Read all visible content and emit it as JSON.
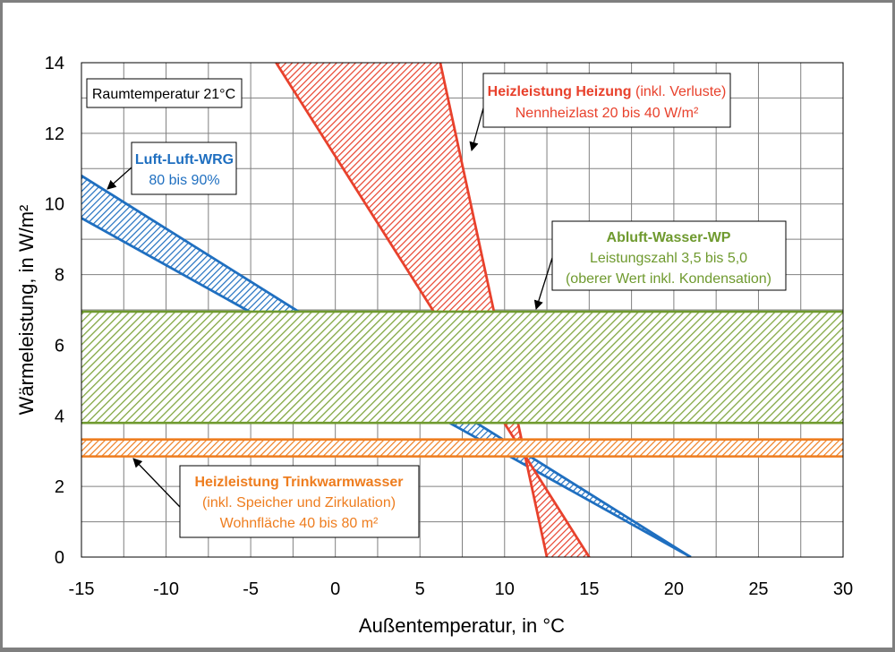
{
  "chart_data": {
    "type": "area",
    "xlabel": "Außentemperatur, in °C",
    "ylabel": "Wärmeleistung, in W/m²",
    "xlim": [
      -15,
      30
    ],
    "ylim": [
      0,
      14
    ],
    "xticks": [
      -15,
      -10,
      -5,
      0,
      5,
      10,
      15,
      20,
      25,
      30
    ],
    "yticks": [
      0,
      2,
      4,
      6,
      8,
      10,
      12,
      14
    ],
    "grid": true,
    "colors": {
      "wrg": "#1f6fc0",
      "heizung": "#e8412c",
      "abluft": "#6f9a2f",
      "trinkwarmwasser": "#ee7d1f",
      "grid": "#808080"
    },
    "bands": [
      {
        "id": "wrg",
        "name": "Luft-Luft-WRG",
        "upper": [
          [
            -15,
            10.8
          ],
          [
            21,
            0
          ]
        ],
        "lower": [
          [
            -15,
            9.6
          ],
          [
            21,
            0
          ]
        ]
      },
      {
        "id": "heizung",
        "name": "Heizleistung Heizung",
        "upper": [
          [
            -3.5,
            14
          ],
          [
            15,
            0
          ]
        ],
        "lower": [
          [
            6.2,
            14
          ],
          [
            12.5,
            0
          ]
        ]
      },
      {
        "id": "abluft",
        "name": "Abluft-Wasser-WP",
        "upper": [
          [
            -15,
            6.95
          ],
          [
            30,
            6.95
          ]
        ],
        "lower": [
          [
            -15,
            3.8
          ],
          [
            30,
            3.8
          ]
        ]
      },
      {
        "id": "trinkwarmwasser",
        "name": "Heizleistung Trinkwarmwasser",
        "upper": [
          [
            -15,
            3.33
          ],
          [
            30,
            3.33
          ]
        ],
        "lower": [
          [
            -15,
            2.85
          ],
          [
            30,
            2.85
          ]
        ]
      }
    ]
  },
  "annotations": {
    "raum": {
      "text": "Raumtemperatur 21°C"
    },
    "wrg": {
      "title": "Luft-Luft-WRG",
      "line2": "80 bis 90%"
    },
    "heizung": {
      "title": "Heizleistung Heizung",
      "title_suffix": " (inkl. Verluste)",
      "line2": "Nennheizlast 20 bis 40 W/m²"
    },
    "abluft": {
      "title": "Abluft-Wasser-WP",
      "line2": "Leistungszahl 3,5 bis 5,0",
      "line3": "(oberer Wert inkl. Kondensation)"
    },
    "trinkwarmwasser": {
      "title": "Heizleistung Trinkwarmwasser",
      "line2": "(inkl. Speicher und Zirkulation)",
      "line3": "Wohnfläche 40 bis 80 m²"
    }
  }
}
